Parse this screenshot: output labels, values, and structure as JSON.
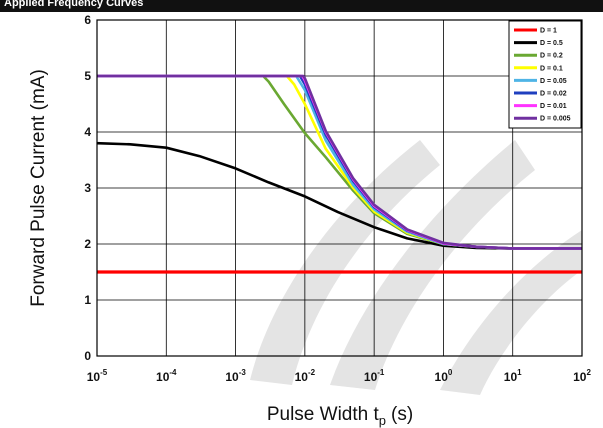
{
  "header": {
    "cropped_caption": "Applied Frequency Curves"
  },
  "watermark": {
    "color": "#e4e4e4"
  },
  "chart_data": {
    "type": "line",
    "title": "",
    "xlabel": "Pulse Width t",
    "xlabel_subscript": "p",
    "xlabel_unit": "(s)",
    "ylabel": "Forward Pulse Current (mA)",
    "xscale": "log",
    "xlim": [
      1e-05,
      100
    ],
    "ylim": [
      0,
      6
    ],
    "grid": true,
    "legend_position": "top-right",
    "x_ticks": [
      {
        "base": "10",
        "exp": "-5",
        "value": 1e-05
      },
      {
        "base": "10",
        "exp": "-4",
        "value": 0.0001
      },
      {
        "base": "10",
        "exp": "-3",
        "value": 0.001
      },
      {
        "base": "10",
        "exp": "-2",
        "value": 0.01
      },
      {
        "base": "10",
        "exp": "-1",
        "value": 0.1
      },
      {
        "base": "10",
        "exp": "0",
        "value": 1
      },
      {
        "base": "10",
        "exp": "1",
        "value": 10
      },
      {
        "base": "10",
        "exp": "2",
        "value": 100
      }
    ],
    "y_ticks": [
      "0",
      "1",
      "2",
      "3",
      "4",
      "5",
      "6"
    ],
    "series": [
      {
        "name": "D = 1",
        "color": "#ff0000",
        "x": [
          1e-05,
          100
        ],
        "y": [
          1.5,
          1.5
        ]
      },
      {
        "name": "D = 0.5",
        "color": "#000000",
        "x": [
          1e-05,
          3e-05,
          0.0001,
          0.0003,
          0.001,
          0.003,
          0.01,
          0.03,
          0.1,
          0.3,
          1,
          3,
          10,
          100
        ],
        "y": [
          3.8,
          3.78,
          3.72,
          3.57,
          3.35,
          3.1,
          2.85,
          2.57,
          2.3,
          2.1,
          1.97,
          1.93,
          1.92,
          1.92
        ]
      },
      {
        "name": "D = 0.2",
        "color": "#6aa832",
        "x": [
          1e-05,
          0.0025,
          0.003,
          0.005,
          0.01,
          0.02,
          0.05,
          0.1,
          0.3,
          1,
          3,
          10,
          100
        ],
        "y": [
          5,
          5,
          4.9,
          4.5,
          3.98,
          3.55,
          2.95,
          2.55,
          2.18,
          2.0,
          1.95,
          1.92,
          1.92
        ]
      },
      {
        "name": "D = 0.1",
        "color": "#ffff00",
        "x": [
          1e-05,
          0.0055,
          0.007,
          0.01,
          0.02,
          0.05,
          0.1,
          0.3,
          1,
          3,
          10,
          100
        ],
        "y": [
          5,
          5,
          4.85,
          4.5,
          3.7,
          3.0,
          2.58,
          2.2,
          2.0,
          1.95,
          1.92,
          1.92
        ]
      },
      {
        "name": "D = 0.05",
        "color": "#4fb4e6",
        "x": [
          1e-05,
          0.0075,
          0.01,
          0.02,
          0.05,
          0.1,
          0.3,
          1,
          3,
          10,
          100
        ],
        "y": [
          5,
          5,
          4.75,
          3.85,
          3.05,
          2.62,
          2.22,
          2.0,
          1.95,
          1.92,
          1.92
        ]
      },
      {
        "name": "D = 0.02",
        "color": "#1f3fbf",
        "x": [
          1e-05,
          0.0085,
          0.01,
          0.02,
          0.05,
          0.1,
          0.3,
          1,
          3,
          10,
          100
        ],
        "y": [
          5,
          5,
          4.85,
          3.95,
          3.12,
          2.66,
          2.24,
          2.01,
          1.95,
          1.92,
          1.92
        ]
      },
      {
        "name": "D = 0.01",
        "color": "#ff33ff",
        "x": [
          1e-05,
          0.0092,
          0.01,
          0.02,
          0.05,
          0.1,
          0.3,
          1,
          3,
          10,
          100
        ],
        "y": [
          5,
          5,
          4.92,
          4.0,
          3.15,
          2.68,
          2.25,
          2.01,
          1.95,
          1.92,
          1.92
        ]
      },
      {
        "name": "D = 0.005",
        "color": "#7030a0",
        "x": [
          1e-05,
          0.0095,
          0.01,
          0.02,
          0.05,
          0.1,
          0.3,
          1,
          3,
          10,
          100
        ],
        "y": [
          5,
          5,
          4.96,
          4.02,
          3.17,
          2.7,
          2.26,
          2.02,
          1.95,
          1.92,
          1.92
        ]
      }
    ]
  }
}
